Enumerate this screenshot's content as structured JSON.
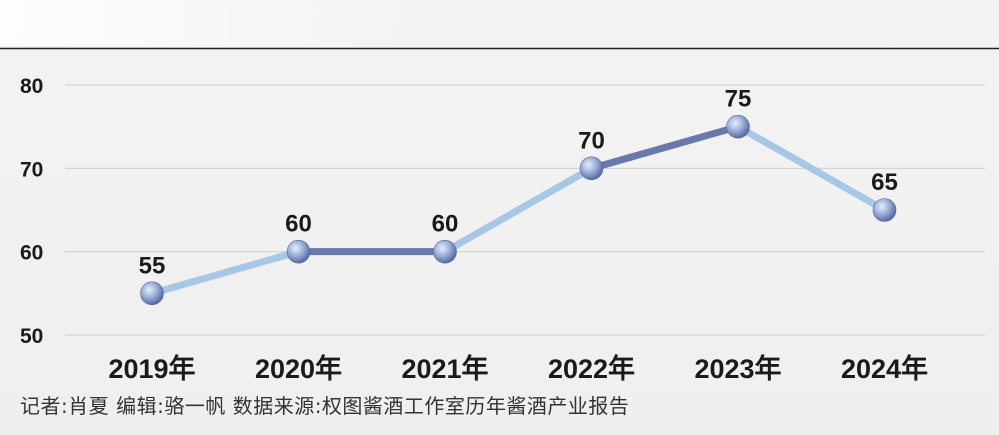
{
  "chart_data": {
    "type": "line",
    "categories": [
      "2019年",
      "2020年",
      "2021年",
      "2022年",
      "2023年",
      "2024年"
    ],
    "series": [
      {
        "values": [
          55,
          60,
          60,
          70,
          75,
          65
        ]
      }
    ],
    "data_labels": [
      "55",
      "60",
      "60",
      "70",
      "75",
      "65"
    ],
    "yticks": [
      50,
      60,
      70,
      80
    ],
    "ylim": [
      50,
      80
    ],
    "grid": true,
    "colors": {
      "line_light": "#a8c6e6",
      "line_dark": "#6a78aa",
      "marker": "#7f95c8",
      "gridline": "#cfcfcf",
      "top_rule": "#222222"
    }
  },
  "footer": {
    "credit": "记者:肖夏   编辑:骆一帆   数据来源:权图酱酒工作室历年酱酒产业报告"
  }
}
